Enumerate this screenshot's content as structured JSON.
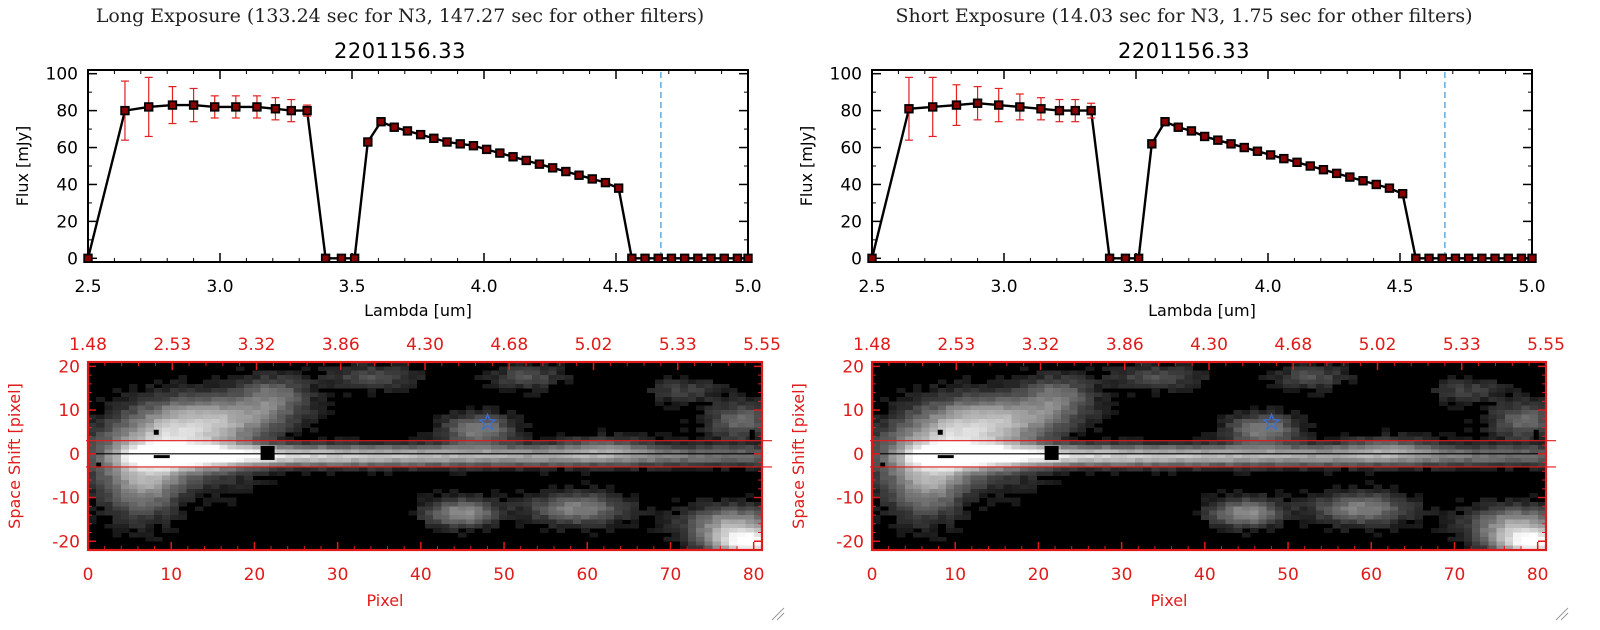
{
  "panels": [
    {
      "caption": "Long Exposure (133.24 sec for N3, 147.27 sec for other filters)",
      "spectrum": {
        "title": "2201156.33",
        "xlabel": "Lambda [um]",
        "ylabel": "Flux [mJy]",
        "xlim": [
          2.5,
          5.0
        ],
        "ylim": [
          -2,
          102
        ],
        "xticks": [
          "2.5",
          "3.0",
          "3.5",
          "4.0",
          "4.5",
          "5.0"
        ],
        "yticks": [
          "0",
          "20",
          "40",
          "60",
          "80",
          "100"
        ],
        "vline_x": 4.67
      },
      "image": {
        "top_ticks": [
          "1.48",
          "2.53",
          "3.32",
          "3.86",
          "4.30",
          "4.68",
          "5.02",
          "5.33",
          "5.55"
        ],
        "xticks": [
          "0",
          "10",
          "20",
          "30",
          "40",
          "50",
          "60",
          "70",
          "80"
        ],
        "yticks": [
          "-20",
          "-10",
          "0",
          "10",
          "20"
        ],
        "xlabel": "Pixel",
        "ylabel": "Space Shift [pixel]"
      }
    },
    {
      "caption": "Short Exposure (14.03 sec for N3, 1.75 sec for other filters)",
      "spectrum": {
        "title": "2201156.33",
        "xlabel": "Lambda [um]",
        "ylabel": "Flux [mJy]",
        "xlim": [
          2.5,
          5.0
        ],
        "ylim": [
          -2,
          102
        ],
        "xticks": [
          "2.5",
          "3.0",
          "3.5",
          "4.0",
          "4.5",
          "5.0"
        ],
        "yticks": [
          "0",
          "20",
          "40",
          "60",
          "80",
          "100"
        ],
        "vline_x": 4.67
      },
      "image": {
        "top_ticks": [
          "1.48",
          "2.53",
          "3.32",
          "3.86",
          "4.30",
          "4.68",
          "5.02",
          "5.33",
          "5.55"
        ],
        "xticks": [
          "0",
          "10",
          "20",
          "30",
          "40",
          "50",
          "60",
          "70",
          "80"
        ],
        "yticks": [
          "-20",
          "-10",
          "0",
          "10",
          "20"
        ],
        "xlabel": "Pixel",
        "ylabel": "Space Shift [pixel]"
      }
    }
  ],
  "chart_data": [
    {
      "type": "scatter",
      "title": "2201156.33",
      "xlabel": "Lambda [um]",
      "ylabel": "Flux [mJy]",
      "xlim": [
        2.5,
        5.0
      ],
      "ylim": [
        0,
        100
      ],
      "series": [
        {
          "x": [
            2.5,
            2.64,
            2.73,
            2.82,
            2.9,
            2.98,
            3.06,
            3.14,
            3.21,
            3.27,
            3.33,
            3.4,
            3.46,
            3.51,
            3.56,
            3.61,
            3.66,
            3.71,
            3.76,
            3.81,
            3.86,
            3.91,
            3.96,
            4.01,
            4.06,
            4.11,
            4.16,
            4.21,
            4.26,
            4.31,
            4.36,
            4.41,
            4.46,
            4.51,
            4.56,
            4.61,
            4.66,
            4.71,
            4.76,
            4.81,
            4.86,
            4.91,
            4.96,
            5.0
          ],
          "y": [
            0,
            80,
            82,
            83,
            83,
            82,
            82,
            82,
            81,
            80,
            80,
            0,
            0,
            0,
            63,
            74,
            71,
            69,
            67,
            65,
            63,
            62,
            61,
            59,
            57,
            55,
            53,
            51,
            49,
            47,
            45,
            43,
            41,
            38,
            0,
            0,
            0,
            0,
            0,
            0,
            0,
            0,
            0,
            0
          ],
          "yerr": [
            0,
            16,
            16,
            10,
            9,
            6,
            6,
            6,
            6,
            6,
            3,
            0,
            0,
            0,
            0,
            0,
            0,
            0,
            0,
            0,
            0,
            0,
            0,
            0,
            0,
            0,
            0,
            0,
            0,
            0,
            0,
            0,
            0,
            0,
            0,
            0,
            0,
            0,
            0,
            0,
            0,
            0,
            0,
            0
          ]
        }
      ],
      "grid": false
    },
    {
      "type": "scatter",
      "title": "2201156.33",
      "xlabel": "Lambda [um]",
      "ylabel": "Flux [mJy]",
      "xlim": [
        2.5,
        5.0
      ],
      "ylim": [
        0,
        100
      ],
      "series": [
        {
          "x": [
            2.5,
            2.64,
            2.73,
            2.82,
            2.9,
            2.98,
            3.06,
            3.14,
            3.21,
            3.27,
            3.33,
            3.4,
            3.46,
            3.51,
            3.56,
            3.61,
            3.66,
            3.71,
            3.76,
            3.81,
            3.86,
            3.91,
            3.96,
            4.01,
            4.06,
            4.11,
            4.16,
            4.21,
            4.26,
            4.31,
            4.36,
            4.41,
            4.46,
            4.51,
            4.56,
            4.61,
            4.66,
            4.71,
            4.76,
            4.81,
            4.86,
            4.91,
            4.96,
            5.0
          ],
          "y": [
            0,
            81,
            82,
            83,
            84,
            83,
            82,
            81,
            80,
            80,
            80,
            0,
            0,
            0,
            62,
            74,
            71,
            69,
            66,
            64,
            62,
            60,
            58,
            56,
            54,
            52,
            50,
            48,
            46,
            44,
            42,
            40,
            38,
            35,
            0,
            0,
            0,
            0,
            0,
            0,
            0,
            0,
            0,
            0
          ],
          "yerr": [
            0,
            17,
            16,
            11,
            9,
            9,
            7,
            6,
            6,
            6,
            4,
            0,
            0,
            0,
            0,
            0,
            0,
            0,
            0,
            0,
            0,
            0,
            0,
            0,
            0,
            0,
            0,
            0,
            0,
            0,
            0,
            0,
            0,
            0,
            0,
            0,
            0,
            0,
            0,
            0,
            0,
            0,
            0,
            0
          ]
        }
      ],
      "grid": false
    }
  ],
  "colors": {
    "spectrum_line": "#000000",
    "marker_fill": "#8b0000",
    "error_bars": "#e02020",
    "vline": "#4a9be0",
    "baseline_dashed": "#e02020",
    "image_axes": "#e01b1b",
    "extraction_box": "#e01b1b",
    "star": "#3a6fd8"
  }
}
